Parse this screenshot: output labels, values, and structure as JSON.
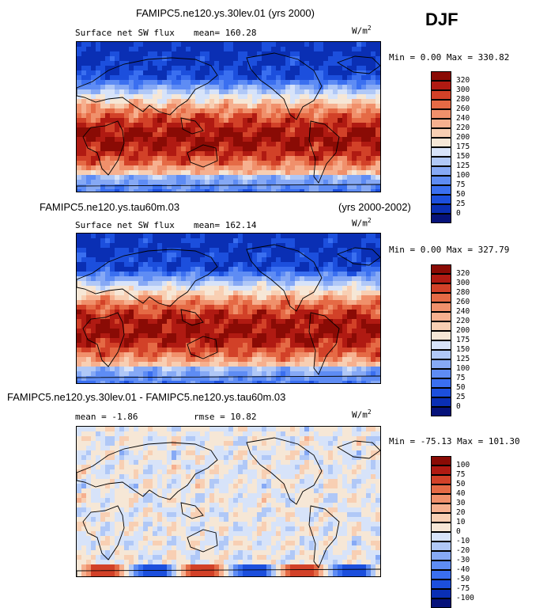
{
  "season": "DJF",
  "units_main": "W/m",
  "units_sup": "2",
  "panels": [
    {
      "title": "FAMIPC5.ne120.ys.30lev.01 (yrs 2000)",
      "title_right": "",
      "subtitle": "Surface net SW flux",
      "stat1": "mean= 160.28",
      "stat2": "",
      "minmax": "Min =   0.00 Max = 330.82"
    },
    {
      "title": "FAMIPC5.ne120.ys.tau60m.03",
      "title_right": "(yrs 2000-2002)",
      "subtitle": "Surface net SW flux",
      "stat1": "mean= 162.14",
      "stat2": "",
      "minmax": "Min =   0.00 Max = 327.79"
    },
    {
      "title": "FAMIPC5.ne120.ys.30lev.01 - FAMIPC5.ne120.ys.tau60m.03",
      "title_right": "",
      "subtitle": "mean =  -1.86",
      "stat1": "rmse =  10.82",
      "stat2": "",
      "minmax": "Min = -75.13 Max = 101.30"
    }
  ],
  "chart_data": [
    {
      "type": "heatmap",
      "title": "FAMIPC5.ne120.ys.30lev.01 (yrs 2000)",
      "variable": "Surface net SW flux",
      "units": "W/m2",
      "mean": 160.28,
      "min": 0.0,
      "max": 330.82,
      "levels": [
        0,
        25,
        50,
        75,
        100,
        125,
        150,
        175,
        200,
        220,
        240,
        260,
        280,
        300,
        320
      ],
      "colors": [
        "#06127a",
        "#0a2fb4",
        "#1c4fdd",
        "#3a6ff0",
        "#5e8cf4",
        "#86a9f5",
        "#b0c8f7",
        "#d7e3f9",
        "#f6e7d6",
        "#f8cfb3",
        "#f6b08f",
        "#f0906b",
        "#e56a45",
        "#d24128",
        "#b01a12",
        "#8a0b05"
      ]
    },
    {
      "type": "heatmap",
      "title": "FAMIPC5.ne120.ys.tau60m.03 (yrs 2000-2002)",
      "variable": "Surface net SW flux",
      "units": "W/m2",
      "mean": 162.14,
      "min": 0.0,
      "max": 327.79,
      "levels": [
        0,
        25,
        50,
        75,
        100,
        125,
        150,
        175,
        200,
        220,
        240,
        260,
        280,
        300,
        320
      ],
      "colors": [
        "#06127a",
        "#0a2fb4",
        "#1c4fdd",
        "#3a6ff0",
        "#5e8cf4",
        "#86a9f5",
        "#b0c8f7",
        "#d7e3f9",
        "#f6e7d6",
        "#f8cfb3",
        "#f6b08f",
        "#f0906b",
        "#e56a45",
        "#d24128",
        "#b01a12",
        "#8a0b05"
      ]
    },
    {
      "type": "heatmap",
      "title": "FAMIPC5.ne120.ys.30lev.01 - FAMIPC5.ne120.ys.tau60m.03",
      "units": "W/m2",
      "mean": -1.86,
      "rmse": 10.82,
      "min": -75.13,
      "max": 101.3,
      "levels": [
        -100,
        -75,
        -50,
        -40,
        -30,
        -20,
        -10,
        0,
        10,
        20,
        30,
        40,
        50,
        75,
        100
      ],
      "colors": [
        "#06127a",
        "#0a2fb4",
        "#1c4fdd",
        "#3a6ff0",
        "#5e8cf4",
        "#86a9f5",
        "#b0c8f7",
        "#d7e3f9",
        "#f6e7d6",
        "#f8cfb3",
        "#f6b08f",
        "#f0906b",
        "#e56a45",
        "#d24128",
        "#b01a12",
        "#8a0b05"
      ]
    }
  ]
}
